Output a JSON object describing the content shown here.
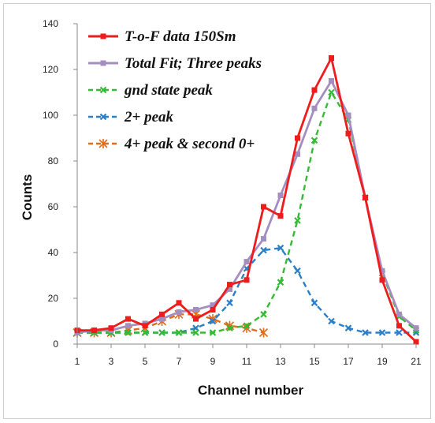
{
  "chart_data": {
    "type": "line",
    "xlabel": "Channel number",
    "ylabel": "Counts",
    "xlim": [
      1,
      21
    ],
    "ylim": [
      0,
      140
    ],
    "x_ticks": [
      "1",
      "3",
      "5",
      "7",
      "9",
      "11",
      "13",
      "15",
      "17",
      "19",
      "21"
    ],
    "y_ticks": [
      "0",
      "20",
      "40",
      "60",
      "80",
      "100",
      "120",
      "140"
    ],
    "grid": false,
    "legend_position": "top-left",
    "series": [
      {
        "name": "T-o-F data 150Sm",
        "color": "#ee1c1c",
        "line_style": "solid",
        "marker": "square",
        "x": [
          1,
          2,
          3,
          4,
          5,
          6,
          7,
          8,
          9,
          10,
          11,
          12,
          13,
          14,
          15,
          16,
          17,
          18,
          19,
          20,
          21
        ],
        "values": [
          6,
          6,
          7,
          11,
          8,
          13,
          18,
          11,
          15,
          26,
          28,
          60,
          56,
          90,
          111,
          125,
          92,
          64,
          28,
          8,
          1
        ]
      },
      {
        "name": "Total Fit; Three peaks",
        "color": "#a48ec0",
        "line_style": "solid",
        "marker": "square",
        "x": [
          1,
          2,
          3,
          4,
          5,
          6,
          7,
          8,
          9,
          10,
          11,
          12,
          13,
          14,
          15,
          16,
          17,
          18,
          19,
          20,
          21
        ],
        "values": [
          5,
          6,
          6,
          8,
          9,
          11,
          14,
          15,
          17,
          24,
          36,
          46,
          65,
          83,
          103,
          115,
          100,
          64,
          32,
          13,
          7
        ]
      },
      {
        "name": "gnd state peak",
        "color": "#33bb33",
        "line_style": "dashed",
        "marker": "x",
        "x": [
          1,
          2,
          3,
          4,
          5,
          6,
          7,
          8,
          9,
          10,
          11,
          12,
          13,
          14,
          15,
          16,
          17,
          18,
          19,
          20,
          21
        ],
        "values": [
          5,
          5,
          5,
          5,
          5,
          5,
          5,
          5,
          5,
          7,
          8,
          13,
          27,
          54,
          89,
          110,
          98,
          64,
          31,
          12,
          6
        ]
      },
      {
        "name": "2+ peak",
        "color": "#2b7fc9",
        "line_style": "dashed",
        "marker": "x",
        "x": [
          1,
          2,
          3,
          4,
          5,
          6,
          7,
          8,
          9,
          10,
          11,
          12,
          13,
          14,
          15,
          16,
          17,
          18,
          19,
          20,
          21
        ],
        "values": [
          5,
          5,
          5,
          5,
          5,
          5,
          5,
          7,
          10,
          18,
          33,
          41,
          42,
          32,
          18,
          10,
          7,
          5,
          5,
          5,
          5
        ]
      },
      {
        "name": "4+ peak & second 0+",
        "color": "#e06c1c",
        "line_style": "dashed",
        "marker": "asterisk",
        "x": [
          1,
          2,
          3,
          4,
          5,
          6,
          7,
          8,
          9,
          10,
          11,
          12
        ],
        "values": [
          5,
          5,
          5,
          6,
          7,
          10,
          13,
          13,
          11,
          8,
          7,
          5
        ]
      }
    ]
  }
}
